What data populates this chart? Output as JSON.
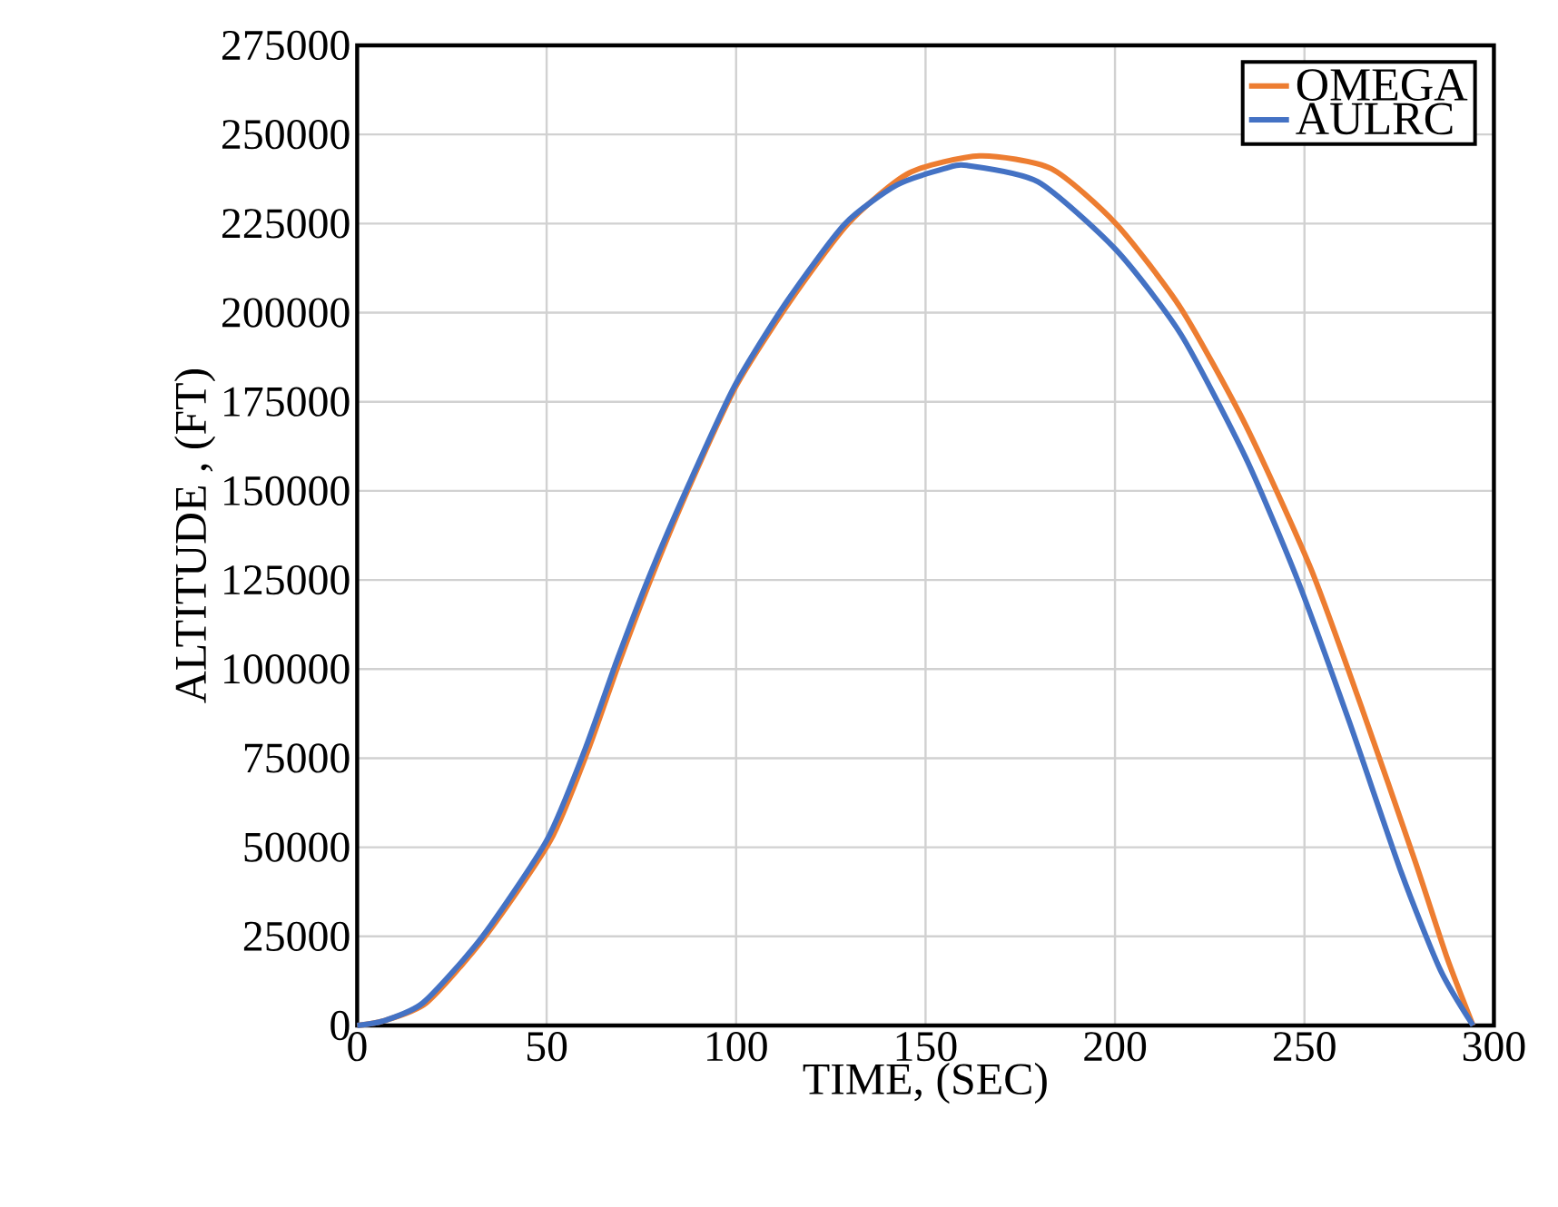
{
  "chart_data": {
    "type": "line",
    "xlabel": "TIME, (SEC)",
    "ylabel": "ALTITUDE , (FT)",
    "xlim": [
      0,
      300
    ],
    "xticks": [
      0,
      50,
      100,
      150,
      200,
      250,
      300
    ],
    "ylim": [
      0,
      275000
    ],
    "yticks": [
      0,
      25000,
      50000,
      75000,
      100000,
      125000,
      150000,
      175000,
      200000,
      225000,
      250000,
      275000
    ],
    "grid": true,
    "legend": "top right",
    "marker": "none",
    "line_style": "solid",
    "series": [
      {
        "name": "OMEGA",
        "color": "#ed7d31",
        "x": [
          0,
          7,
          18.3,
          33.5,
          51,
          61,
          69.5,
          78,
          88,
          100,
          114.1,
          129.5,
          145.5,
          164.3,
          183.2,
          200.3,
          217.4,
          234.5,
          251.6,
          265.4,
          279.1,
          287.6,
          294.5
        ],
        "values": [
          0,
          1300,
          6400,
          24600,
          51900,
          77400,
          102900,
          126600,
          152000,
          179400,
          203000,
          224900,
          239100,
          244000,
          240400,
          224900,
          201200,
          168400,
          128400,
          88300,
          46400,
          19100,
          0
        ]
      },
      {
        "name": "AULRC",
        "color": "#4472c4",
        "x": [
          0,
          7,
          17.4,
          32.8,
          50,
          60.1,
          68.7,
          77.3,
          87.6,
          99.6,
          113.3,
          128.7,
          142.4,
          154.9,
          160.9,
          179.7,
          200.3,
          217.4,
          234.5,
          248.3,
          262,
          275.6,
          285.9,
          294.5
        ],
        "values": [
          0,
          1300,
          6400,
          24600,
          51900,
          77400,
          102900,
          126600,
          152000,
          179400,
          203000,
          224900,
          235800,
          240400,
          241300,
          236700,
          217600,
          193900,
          159300,
          124700,
          84700,
          42800,
          15500,
          0
        ]
      }
    ]
  }
}
